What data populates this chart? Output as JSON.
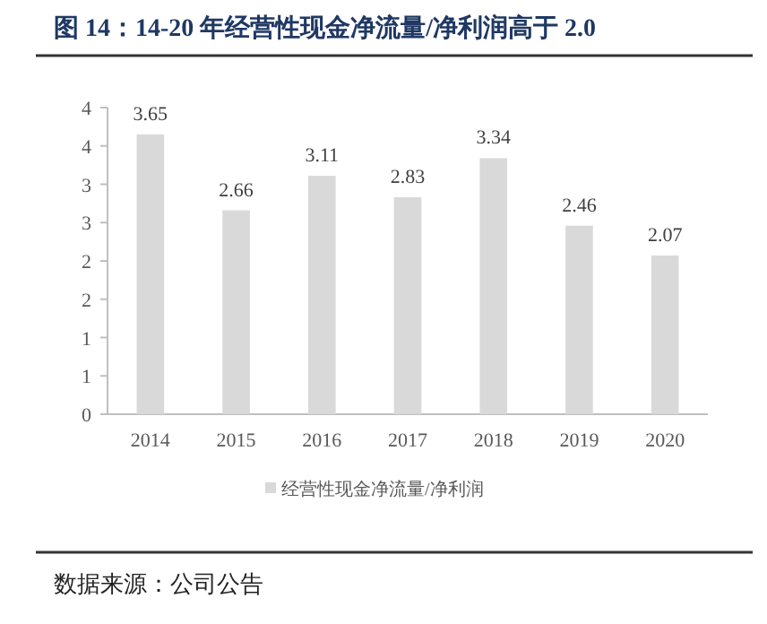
{
  "chart_data": {
    "type": "bar",
    "title": "图 14：14-20 年经营性现金净流量/净利润高于 2.0",
    "categories": [
      "2014",
      "2015",
      "2016",
      "2017",
      "2018",
      "2019",
      "2020"
    ],
    "series": [
      {
        "name": "经营性现金净流量/净利润",
        "color": "#d9d9d9",
        "values": [
          3.65,
          2.66,
          3.11,
          2.83,
          3.34,
          2.46,
          2.07
        ]
      }
    ],
    "ylim": [
      0,
      4
    ],
    "yticks": [
      0,
      {
        "value": 0.5,
        "label": "1"
      },
      1,
      {
        "value": 1.5,
        "label": "2"
      },
      2,
      {
        "value": 2.5,
        "label": "3"
      },
      3,
      {
        "value": 3.5,
        "label": "4"
      },
      4
    ],
    "data_labels": true,
    "legend": "bottom",
    "annotations": [
      "数据来源：公司公告"
    ]
  }
}
